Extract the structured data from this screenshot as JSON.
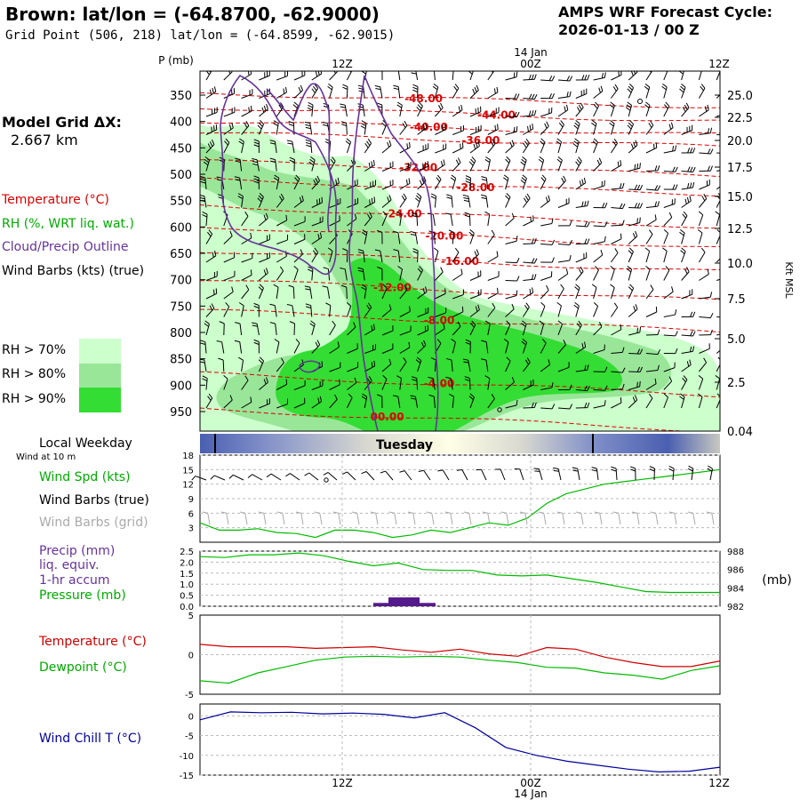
{
  "header": {
    "title": "Brown:  lat/lon = (-64.8700, -62.9000)",
    "subtitle": "Grid Point (506, 218) lat/lon = (-64.8599, -62.9015)",
    "cycle_line1": "AMPS WRF Forecast Cycle:",
    "cycle_line2": "2026-01-13 / 00  Z"
  },
  "sidebar": {
    "model_grid_line1": "Model Grid ΔX:",
    "model_grid_line2": "2.667 km",
    "legend_temperature": "Temperature (°C)",
    "legend_rh": "RH (%, WRT liq. wat.)",
    "legend_cloud": "Cloud/Precip Outline",
    "legend_wind": "Wind Barbs (kts) (true)",
    "rh_70": "RH > 70%",
    "rh_80": "RH > 80%",
    "rh_90": "RH > 90%",
    "local_weekday": "Local Weekday",
    "wind_at_10m": "Wind at 10 m",
    "wind_spd": "Wind Spd (kts)",
    "wind_barbs_true": "Wind Barbs (true)",
    "wind_barbs_grid": "Wind Barbs (grid)",
    "precip_l1": "Precip (mm)",
    "precip_l2": "liq. equiv.",
    "precip_l3": "1-hr accum",
    "pressure": "Pressure (mb)",
    "temperature": "Temperature (°C)",
    "dewpoint": "Dewpoint (°C)",
    "wind_chill": "Wind Chill T (°C)"
  },
  "colors": {
    "rh70": "#ccffcc",
    "rh80": "#99e699",
    "rh90": "#33dd33",
    "temp": "#dd0000",
    "rh_text": "#00aa00",
    "cloud": "#663399",
    "wind_grid": "#aaaaaa",
    "green_line": "#00bb00",
    "red_line": "#cc0000",
    "blue_line": "#000099",
    "precip_bar": "#551a8b"
  },
  "chart_data": [
    {
      "type": "line",
      "panel": "upper-air cross-section",
      "y_axis_left_label": "P (mb)",
      "y_axis_right_label": "Kft MSL",
      "time_ticks": [
        "12Z",
        "00Z",
        "12Z"
      ],
      "date_label_top": "14 Jan",
      "date_label_bottom": "14 Jan",
      "pressure_ticks": [
        "350",
        "400",
        "450",
        "500",
        "550",
        "600",
        "650",
        "700",
        "750",
        "800",
        "850",
        "900",
        "950"
      ],
      "height_ticks": [
        "25.0",
        "22.5",
        "20.0",
        "17.5",
        "15.0",
        "12.5",
        "10.0",
        "7.5",
        "5.0",
        "2.5",
        "0.04"
      ],
      "isotherms": [
        {
          "label": "-48.00",
          "t": 0.43,
          "p": 357
        },
        {
          "label": "-44.00",
          "t": 0.57,
          "p": 388
        },
        {
          "label": "-40.00",
          "t": 0.44,
          "p": 411
        },
        {
          "label": "-36.00",
          "t": 0.54,
          "p": 436
        },
        {
          "label": "-32.00",
          "t": 0.42,
          "p": 487
        },
        {
          "label": "-28.00",
          "t": 0.53,
          "p": 525
        },
        {
          "label": "-24.00",
          "t": 0.39,
          "p": 575
        },
        {
          "label": "-20.00",
          "t": 0.47,
          "p": 617
        },
        {
          "label": "-16.00",
          "t": 0.5,
          "p": 665
        },
        {
          "label": "-12.00",
          "t": 0.37,
          "p": 715
        },
        {
          "label": "-8.00",
          "t": 0.46,
          "p": 777
        },
        {
          "label": "-4.00",
          "t": 0.46,
          "p": 897
        },
        {
          "label": "00.00",
          "t": 0.36,
          "p": 960
        }
      ],
      "rh_thresholds": [
        "70%",
        "80%",
        "90%"
      ]
    },
    {
      "type": "line",
      "panel": "weekday band",
      "weekday": "Tuesday"
    },
    {
      "type": "line",
      "panel": "wind speed",
      "y_ticks": [
        "18",
        "15",
        "12",
        "9",
        "6",
        "3"
      ],
      "ylim": [
        0,
        18
      ],
      "series": [
        {
          "name": "Wind Spd (kts)",
          "values": [
            4,
            2.5,
            2.5,
            2.8,
            2,
            1.8,
            1,
            2.5,
            2.5,
            2,
            1,
            1.5,
            2.5,
            2,
            3,
            4,
            3.5,
            5,
            8,
            10,
            11,
            12,
            12.5,
            13,
            13.5,
            14,
            14.5,
            15
          ]
        }
      ]
    },
    {
      "type": "line",
      "panel": "precip and pressure",
      "y_ticks_left": [
        "2.5",
        "2.0",
        "1.5",
        "1.0",
        "0.5",
        "0.0"
      ],
      "y_ticks_right": [
        "988",
        "986",
        "984",
        "982"
      ],
      "right_unit": "(mb)",
      "pressure_series": [
        {
          "name": "Pressure (mb)",
          "values": [
            987.4,
            987.3,
            987.6,
            987.6,
            987.8,
            987.5,
            986.9,
            986.4,
            986.7,
            986.0,
            985.9,
            985.9,
            985.4,
            985.3,
            985.4,
            985.0,
            984.6,
            984.1,
            983.6,
            983.5,
            983.5,
            983.5
          ]
        }
      ],
      "precip_series": [
        {
          "name": "Precip (mm)",
          "values": [
            0.15,
            0.4,
            0.15
          ]
        }
      ]
    },
    {
      "type": "line",
      "panel": "temperature and dewpoint",
      "y_ticks": [
        "5",
        "0",
        "-5"
      ],
      "ylim": [
        -5,
        5
      ],
      "series": [
        {
          "name": "Temperature (°C)",
          "values": [
            1.3,
            1.0,
            1.0,
            1.0,
            0.8,
            0.9,
            1.0,
            0.6,
            0.3,
            0.7,
            0.1,
            -0.2,
            0.9,
            0.7,
            -0.3,
            -1.0,
            -1.5,
            -1.5,
            -0.8
          ]
        },
        {
          "name": "Dewpoint (°C)",
          "values": [
            -3.3,
            -3.6,
            -2.3,
            -1.5,
            -0.7,
            -0.3,
            -0.2,
            -0.3,
            -0.2,
            -0.3,
            -0.7,
            -1.0,
            -1.6,
            -1.7,
            -2.3,
            -2.6,
            -3.1,
            -2.0,
            -1.4
          ]
        }
      ]
    },
    {
      "type": "line",
      "panel": "wind chill",
      "y_ticks": [
        "0",
        "-5",
        "-10",
        "-15"
      ],
      "ylim": [
        -15,
        3
      ],
      "series": [
        {
          "name": "Wind Chill T (°C)",
          "values": [
            -1,
            1,
            0.8,
            0.9,
            0.5,
            0.7,
            0.4,
            -0.5,
            0.8,
            -3,
            -8,
            -10,
            -11.5,
            -12.5,
            -13.5,
            -14.2,
            -14,
            -13
          ]
        }
      ]
    }
  ]
}
